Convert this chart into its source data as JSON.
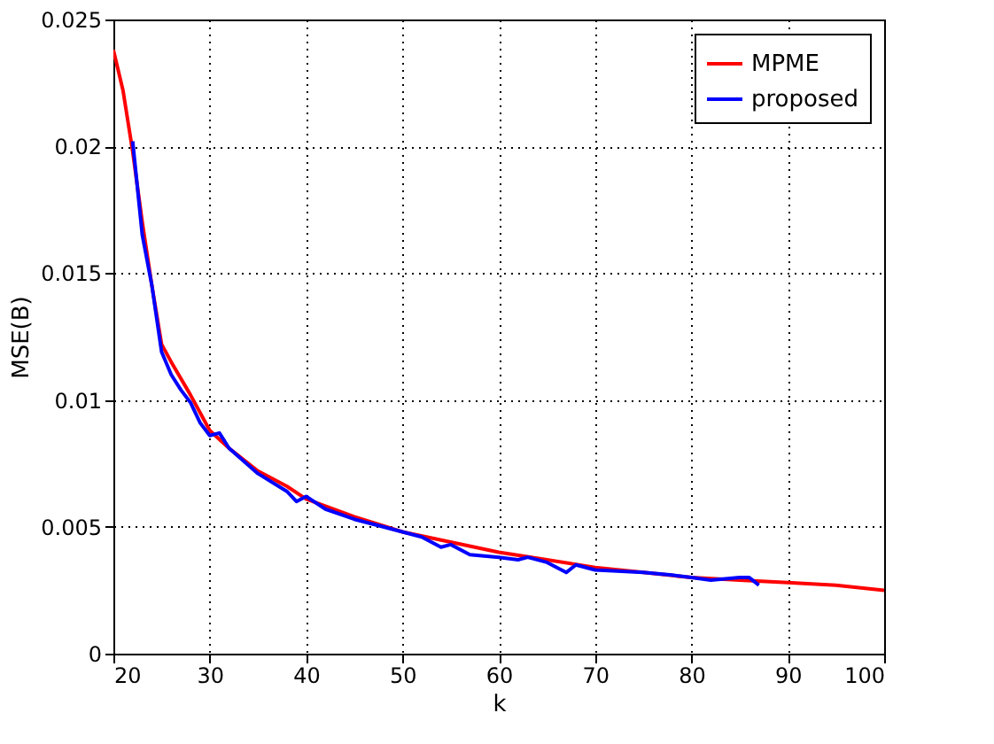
{
  "chart_data": {
    "type": "line",
    "xlabel": "k",
    "ylabel": "MSE(B)",
    "xlim": [
      20,
      100
    ],
    "xticks": [
      20,
      30,
      40,
      50,
      60,
      70,
      80,
      90,
      100
    ],
    "ylim": [
      0,
      0.025
    ],
    "yticks": [
      0,
      0.005,
      0.01,
      0.015,
      0.02,
      0.025
    ],
    "grid": true,
    "legend": "top right",
    "line_style": "solid",
    "marker": "none",
    "series": [
      {
        "name": "MPME",
        "color": "#ff0000",
        "x": [
          20,
          21,
          22,
          23,
          24,
          25,
          26,
          28,
          30,
          32,
          35,
          38,
          40,
          45,
          50,
          55,
          60,
          65,
          70,
          75,
          80,
          85,
          90,
          95,
          100
        ],
        "values": [
          0.0238,
          0.0222,
          0.0198,
          0.017,
          0.0145,
          0.0122,
          0.0115,
          0.0102,
          0.0088,
          0.0081,
          0.0072,
          0.0066,
          0.0061,
          0.0054,
          0.0048,
          0.0044,
          0.004,
          0.0037,
          0.0034,
          0.0032,
          0.003,
          0.0029,
          0.0028,
          0.0027,
          0.0025
        ]
      },
      {
        "name": "proposed",
        "color": "#0000ff",
        "x": [
          22,
          23,
          24,
          25,
          26,
          27,
          28,
          29,
          30,
          31,
          32,
          35,
          38,
          39,
          40,
          42,
          45,
          48,
          50,
          52,
          54,
          55,
          57,
          60,
          62,
          63,
          65,
          67,
          68,
          70,
          75,
          78,
          80,
          82,
          85,
          86,
          87
        ],
        "values": [
          0.0202,
          0.0165,
          0.0145,
          0.0119,
          0.011,
          0.0104,
          0.0099,
          0.0091,
          0.0086,
          0.0087,
          0.0081,
          0.0071,
          0.0064,
          0.006,
          0.0062,
          0.0057,
          0.0053,
          0.005,
          0.0048,
          0.0046,
          0.0042,
          0.0043,
          0.0039,
          0.0038,
          0.0037,
          0.0038,
          0.0036,
          0.0032,
          0.0035,
          0.0033,
          0.0032,
          0.0031,
          0.003,
          0.0029,
          0.003,
          0.003,
          0.0027
        ]
      }
    ]
  }
}
